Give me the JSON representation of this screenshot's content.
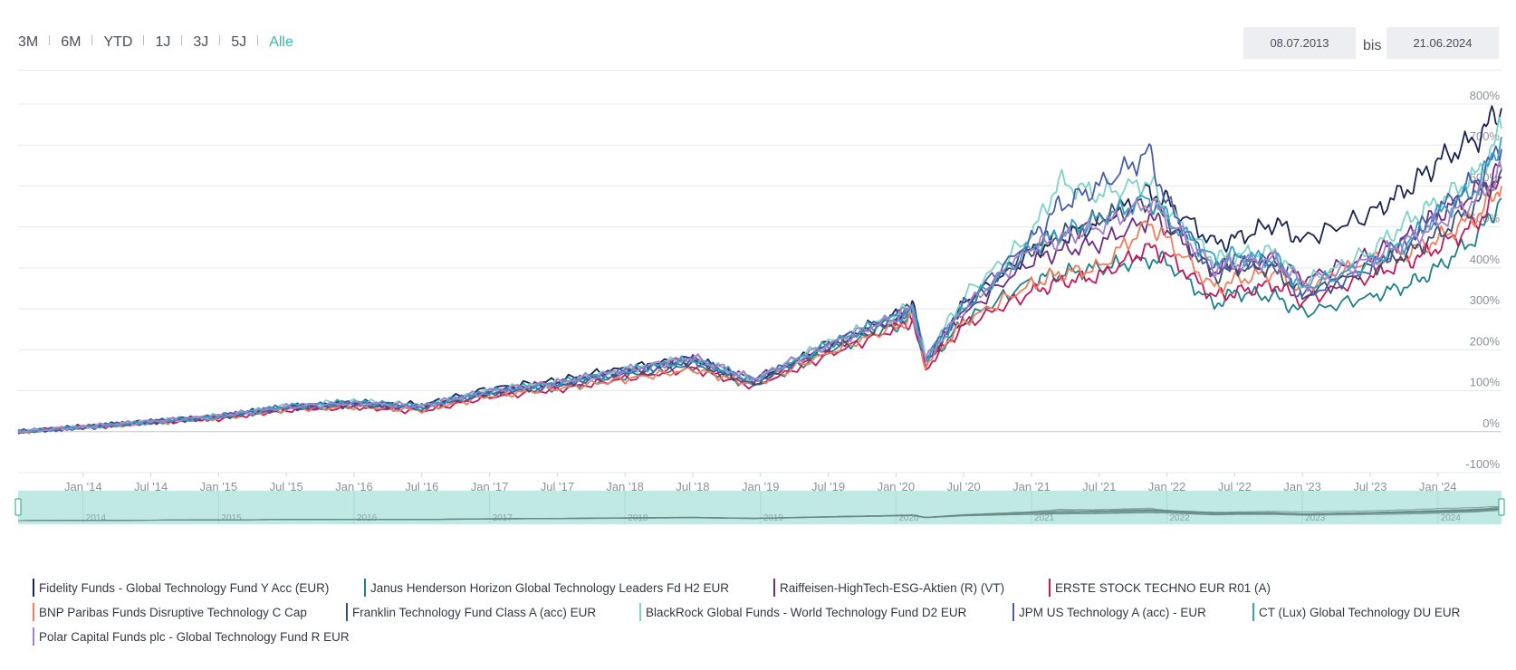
{
  "range_selector": {
    "options": [
      "3M",
      "6M",
      "YTD",
      "1J",
      "3J",
      "5J",
      "Alle"
    ],
    "active": "Alle"
  },
  "date_range": {
    "from": "08.07.2013",
    "separator": "bis",
    "to": "21.06.2024"
  },
  "colors": {
    "accent": "#3bb5a3",
    "grid": "#e6e8eb",
    "navigator_fill": "#bfe9e2",
    "axis_text": "#8a9099"
  },
  "chart_data": {
    "type": "line",
    "ylim": [
      -100,
      800
    ],
    "y_ticks": [
      -100,
      0,
      100,
      200,
      300,
      400,
      500,
      600,
      700,
      800
    ],
    "y_tick_labels": [
      "-100%",
      "0%",
      "100%",
      "200%",
      "300%",
      "400%",
      "500%",
      "600%",
      "700%",
      "800%"
    ],
    "y_unit": "%",
    "xlim": [
      2013.52,
      2024.47
    ],
    "x_ticks": [
      2014.0,
      2014.5,
      2015.0,
      2015.5,
      2016.0,
      2016.5,
      2017.0,
      2017.5,
      2018.0,
      2018.5,
      2019.0,
      2019.5,
      2020.0,
      2020.5,
      2021.0,
      2021.5,
      2022.0,
      2022.5,
      2023.0,
      2023.5,
      2024.0
    ],
    "x_tick_labels": [
      "Jan '14",
      "Jul '14",
      "Jan '15",
      "Jul '15",
      "Jan '16",
      "Jul '16",
      "Jan '17",
      "Jul '17",
      "Jan '18",
      "Jul '18",
      "Jan '19",
      "Jul '19",
      "Jan '20",
      "Jul '20",
      "Jan '21",
      "Jul '21",
      "Jan '22",
      "Jul '22",
      "Jan '23",
      "Jul '23",
      "Jan '24"
    ],
    "navigator_years": [
      2014,
      2015,
      2016,
      2017,
      2018,
      2019,
      2020,
      2021,
      2022,
      2023,
      2024
    ],
    "x": [
      2013.52,
      2014.0,
      2014.5,
      2015.0,
      2015.5,
      2016.0,
      2016.5,
      2017.0,
      2017.5,
      2018.0,
      2018.5,
      2018.95,
      2019.5,
      2020.0,
      2020.12,
      2020.22,
      2020.5,
      2021.0,
      2021.2,
      2021.5,
      2021.87,
      2022.0,
      2022.35,
      2022.5,
      2022.8,
      2023.0,
      2023.5,
      2023.8,
      2024.0,
      2024.3,
      2024.47
    ],
    "series": [
      {
        "name": "Fidelity Funds - Global Technology Fund Y Acc (EUR)",
        "color": "#1a2550",
        "values": [
          0,
          12,
          25,
          38,
          60,
          72,
          65,
          105,
          125,
          155,
          180,
          120,
          215,
          285,
          310,
          180,
          310,
          440,
          470,
          510,
          590,
          560,
          460,
          470,
          510,
          470,
          530,
          600,
          660,
          720,
          790
        ]
      },
      {
        "name": "Janus Henderson Horizon Global Technology Leaders Fd H2 EUR",
        "color": "#1f7f8c",
        "values": [
          0,
          10,
          22,
          34,
          55,
          63,
          55,
          92,
          108,
          135,
          160,
          112,
          195,
          260,
          280,
          160,
          270,
          370,
          385,
          400,
          420,
          415,
          310,
          340,
          330,
          290,
          330,
          360,
          400,
          480,
          570
        ]
      },
      {
        "name": "Raiffeisen-HighTech-ESG-Aktien (R) (VT)",
        "color": "#6b2e80",
        "values": [
          0,
          12,
          24,
          37,
          57,
          66,
          60,
          98,
          118,
          148,
          178,
          128,
          205,
          270,
          290,
          170,
          285,
          420,
          440,
          460,
          520,
          500,
          390,
          410,
          420,
          370,
          430,
          480,
          530,
          590,
          650
        ]
      },
      {
        "name": "ERSTE STOCK TECHNO EUR R01 (A)",
        "color": "#c2185b",
        "values": [
          0,
          10,
          22,
          32,
          53,
          60,
          50,
          85,
          103,
          130,
          155,
          110,
          188,
          252,
          272,
          155,
          260,
          340,
          365,
          380,
          450,
          430,
          330,
          340,
          360,
          320,
          380,
          420,
          450,
          510,
          620
        ]
      },
      {
        "name": "BNP Paribas Funds Disruptive Technology C Cap",
        "color": "#f07e5e",
        "values": [
          0,
          11,
          22,
          33,
          54,
          61,
          52,
          87,
          105,
          128,
          152,
          115,
          192,
          258,
          278,
          162,
          268,
          360,
          385,
          400,
          510,
          470,
          350,
          370,
          390,
          350,
          420,
          440,
          470,
          530,
          600
        ]
      },
      {
        "name": "Franklin Technology Fund Class A (acc) EUR",
        "color": "#3a4e6e",
        "values": [
          0,
          11,
          24,
          36,
          58,
          68,
          60,
          96,
          116,
          145,
          172,
          118,
          208,
          278,
          300,
          172,
          300,
          450,
          480,
          520,
          560,
          520,
          380,
          400,
          400,
          330,
          400,
          440,
          480,
          560,
          640
        ]
      },
      {
        "name": "BlackRock Global Funds - World Technology Fund D2 EUR",
        "color": "#7dd3c5",
        "values": [
          0,
          12,
          25,
          38,
          63,
          74,
          64,
          100,
          120,
          150,
          180,
          128,
          215,
          285,
          305,
          180,
          330,
          480,
          610,
          580,
          610,
          540,
          420,
          430,
          440,
          360,
          440,
          520,
          560,
          630,
          740
        ]
      },
      {
        "name": "JPM US Technology A (acc) - EUR",
        "color": "#4a5ea8",
        "values": [
          0,
          11,
          24,
          37,
          60,
          70,
          60,
          95,
          115,
          145,
          175,
          120,
          212,
          280,
          305,
          175,
          310,
          470,
          550,
          600,
          680,
          560,
          390,
          420,
          410,
          330,
          400,
          470,
          540,
          620,
          690
        ]
      },
      {
        "name": "CT (Lux) Global Technology DU EUR",
        "color": "#36a0c2",
        "values": [
          0,
          11,
          24,
          37,
          62,
          72,
          62,
          98,
          118,
          148,
          176,
          126,
          212,
          282,
          300,
          176,
          300,
          450,
          480,
          520,
          570,
          520,
          420,
          430,
          420,
          350,
          410,
          470,
          530,
          600,
          720
        ]
      },
      {
        "name": "Polar Capital Funds plc - Global Technology Fund R EUR",
        "color": "#a580c9",
        "values": [
          0,
          12,
          25,
          38,
          60,
          70,
          62,
          100,
          120,
          150,
          182,
          128,
          212,
          282,
          300,
          176,
          300,
          450,
          470,
          500,
          560,
          520,
          400,
          410,
          420,
          360,
          420,
          470,
          510,
          570,
          640
        ]
      }
    ]
  }
}
